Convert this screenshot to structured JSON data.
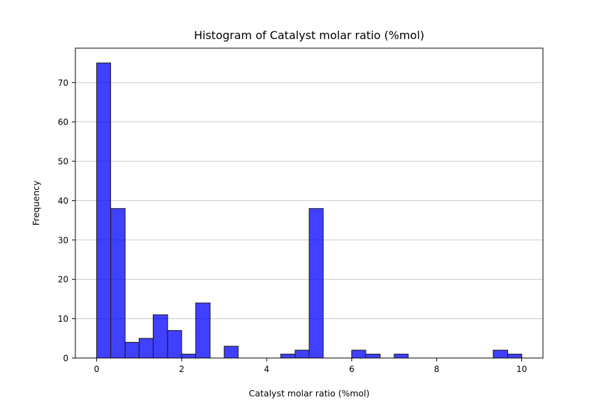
{
  "chart_data": {
    "type": "bar",
    "title": "Histogram of Catalyst molar ratio (%mol)",
    "xlabel": "Catalyst molar ratio (%mol)",
    "ylabel": "Frequency",
    "xlim": [
      -0.5,
      10.5
    ],
    "ylim": [
      0,
      78.75
    ],
    "xticks": [
      0,
      2,
      4,
      6,
      8,
      10
    ],
    "yticks": [
      0,
      10,
      20,
      30,
      40,
      50,
      60,
      70
    ],
    "grid": "y",
    "bar_color": "#0000ff",
    "bins": [
      {
        "x0": 0.0,
        "x1": 0.33,
        "count": 75
      },
      {
        "x0": 0.33,
        "x1": 0.67,
        "count": 38
      },
      {
        "x0": 0.67,
        "x1": 1.0,
        "count": 4
      },
      {
        "x0": 1.0,
        "x1": 1.33,
        "count": 5
      },
      {
        "x0": 1.33,
        "x1": 1.67,
        "count": 11
      },
      {
        "x0": 1.67,
        "x1": 2.0,
        "count": 7
      },
      {
        "x0": 2.0,
        "x1": 2.33,
        "count": 1
      },
      {
        "x0": 2.33,
        "x1": 2.67,
        "count": 14
      },
      {
        "x0": 2.67,
        "x1": 3.0,
        "count": 0
      },
      {
        "x0": 3.0,
        "x1": 3.33,
        "count": 3
      },
      {
        "x0": 3.33,
        "x1": 3.67,
        "count": 0
      },
      {
        "x0": 3.67,
        "x1": 4.0,
        "count": 0
      },
      {
        "x0": 4.0,
        "x1": 4.33,
        "count": 0
      },
      {
        "x0": 4.33,
        "x1": 4.67,
        "count": 1
      },
      {
        "x0": 4.67,
        "x1": 5.0,
        "count": 2
      },
      {
        "x0": 5.0,
        "x1": 5.33,
        "count": 38
      },
      {
        "x0": 5.33,
        "x1": 5.67,
        "count": 0
      },
      {
        "x0": 5.67,
        "x1": 6.0,
        "count": 0
      },
      {
        "x0": 6.0,
        "x1": 6.33,
        "count": 2
      },
      {
        "x0": 6.33,
        "x1": 6.67,
        "count": 1
      },
      {
        "x0": 6.67,
        "x1": 7.0,
        "count": 0
      },
      {
        "x0": 7.0,
        "x1": 7.33,
        "count": 1
      },
      {
        "x0": 7.33,
        "x1": 7.67,
        "count": 0
      },
      {
        "x0": 7.67,
        "x1": 8.0,
        "count": 0
      },
      {
        "x0": 8.0,
        "x1": 8.33,
        "count": 0
      },
      {
        "x0": 8.33,
        "x1": 8.67,
        "count": 0
      },
      {
        "x0": 8.67,
        "x1": 9.0,
        "count": 0
      },
      {
        "x0": 9.0,
        "x1": 9.33,
        "count": 0
      },
      {
        "x0": 9.33,
        "x1": 9.67,
        "count": 2
      },
      {
        "x0": 9.67,
        "x1": 10.0,
        "count": 1
      }
    ]
  }
}
